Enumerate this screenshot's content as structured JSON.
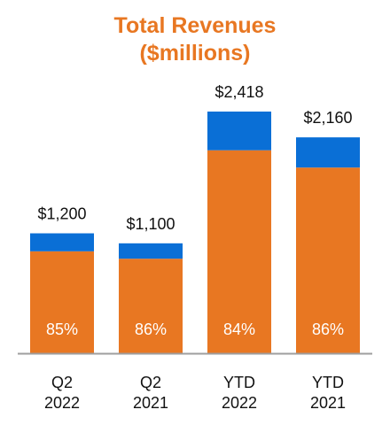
{
  "chart_data": {
    "type": "bar",
    "stacked": true,
    "title_line1": "Total Revenues",
    "title_line2": "($millions)",
    "categories": [
      [
        "Q2",
        "2022"
      ],
      [
        "Q2",
        "2021"
      ],
      [
        "YTD",
        "2022"
      ],
      [
        "YTD",
        "2021"
      ]
    ],
    "totals": [
      1200,
      1100,
      2418,
      2160
    ],
    "total_labels": [
      "$1,200",
      "$1,100",
      "$2,418",
      "$2,160"
    ],
    "series": [
      {
        "values": [
          1020,
          946,
          2031,
          1858
        ],
        "color": "#e87722"
      },
      {
        "values": [
          180,
          154,
          387,
          302
        ],
        "color": "#0a6fd6"
      }
    ],
    "bottom_share_labels": [
      "85%",
      "86%",
      "84%",
      "86%"
    ],
    "ylim": [
      0,
      2418
    ],
    "grid": false,
    "legend": "none",
    "baseline_color": "#9e9e9e"
  }
}
